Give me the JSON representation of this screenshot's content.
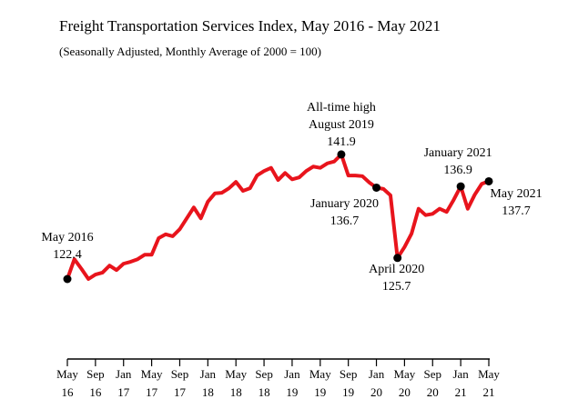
{
  "chart_data": {
    "type": "line",
    "title": "Freight Transportation Services Index, May 2016 - May 2021",
    "subtitle": "(Seasonally Adjusted, Monthly Average of 2000 = 100)",
    "categories": [
      [
        "May",
        "16"
      ],
      null,
      null,
      null,
      [
        "Sep",
        "16"
      ],
      null,
      null,
      null,
      [
        "Jan",
        "17"
      ],
      null,
      null,
      null,
      [
        "May",
        "17"
      ],
      null,
      null,
      null,
      [
        "Sep",
        "17"
      ],
      null,
      null,
      null,
      [
        "Jan",
        "18"
      ],
      null,
      null,
      null,
      [
        "May",
        "18"
      ],
      null,
      null,
      null,
      [
        "Sep",
        "18"
      ],
      null,
      null,
      null,
      [
        "Jan",
        "19"
      ],
      null,
      null,
      null,
      [
        "May",
        "19"
      ],
      null,
      null,
      null,
      [
        "Sep",
        "19"
      ],
      null,
      null,
      null,
      [
        "Jan",
        "20"
      ],
      null,
      null,
      null,
      [
        "May",
        "20"
      ],
      null,
      null,
      null,
      [
        "Sep",
        "20"
      ],
      null,
      null,
      null,
      [
        "Jan",
        "21"
      ],
      null,
      null,
      null,
      [
        "May",
        "21"
      ]
    ],
    "series": [
      {
        "name": "Freight Transportation Services Index",
        "color": "#e8141c",
        "values": [
          122.4,
          125.5,
          124.0,
          122.4,
          123.1,
          123.4,
          124.5,
          123.8,
          124.8,
          125.1,
          125.5,
          126.2,
          126.2,
          128.8,
          129.4,
          129.1,
          130.2,
          131.9,
          133.6,
          131.9,
          134.5,
          135.8,
          135.9,
          136.6,
          137.6,
          136.2,
          136.6,
          138.6,
          139.3,
          139.8,
          137.9,
          139.0,
          138.0,
          138.3,
          139.3,
          140.0,
          139.8,
          140.5,
          140.8,
          141.9,
          138.6,
          138.6,
          138.5,
          137.5,
          136.7,
          136.5,
          135.5,
          125.7,
          127.4,
          129.5,
          133.4,
          132.4,
          132.6,
          133.4,
          132.9,
          134.8,
          136.9,
          133.4,
          135.6,
          137.3,
          137.7
        ],
        "point_labels": [
          [
            "May 2016"
          ],
          null,
          null,
          null,
          null,
          null,
          null,
          null,
          null,
          null,
          null,
          null,
          null,
          null,
          null,
          null,
          null,
          null,
          null,
          null,
          null,
          null,
          null,
          null,
          null,
          null,
          null,
          null,
          null,
          null,
          null,
          null,
          null,
          null,
          null,
          null,
          null,
          null,
          null,
          [
            "All-time high",
            "August 2019"
          ],
          null,
          null,
          null,
          null,
          [
            "January 2020"
          ],
          null,
          null,
          [
            "April 2020"
          ],
          null,
          null,
          null,
          null,
          null,
          null,
          null,
          null,
          [
            "January 2021"
          ],
          null,
          null,
          null,
          [
            "May 2021"
          ]
        ],
        "value_labels": [
          "122.4",
          null,
          null,
          null,
          null,
          null,
          null,
          null,
          null,
          null,
          null,
          null,
          null,
          null,
          null,
          null,
          null,
          null,
          null,
          null,
          null,
          null,
          null,
          null,
          null,
          null,
          null,
          null,
          null,
          null,
          null,
          null,
          null,
          null,
          null,
          null,
          null,
          null,
          null,
          "141.9",
          null,
          null,
          null,
          null,
          "136.7",
          null,
          null,
          "125.7",
          null,
          null,
          null,
          null,
          null,
          null,
          null,
          null,
          "136.9",
          null,
          null,
          null,
          "137.7"
        ]
      }
    ]
  }
}
